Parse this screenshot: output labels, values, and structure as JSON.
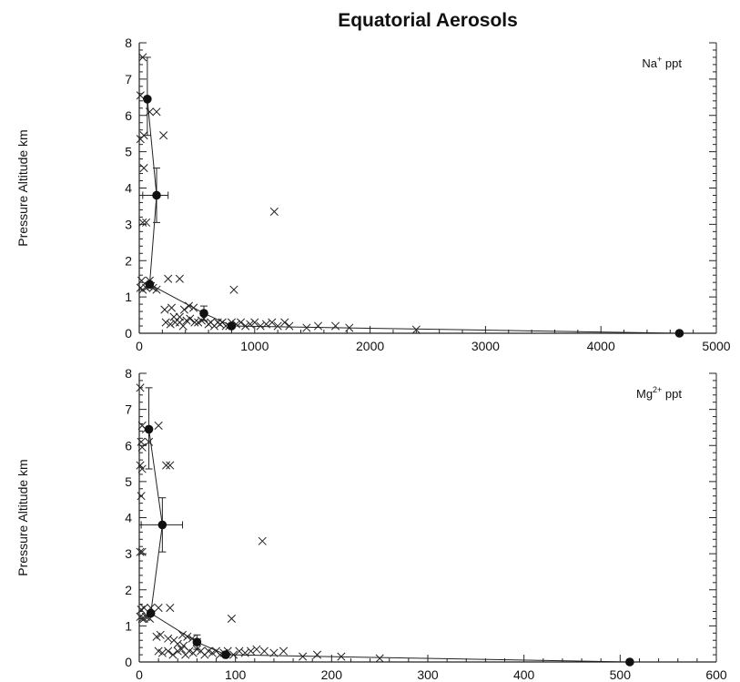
{
  "title": "Equatorial Aerosols",
  "chart_data": [
    {
      "type": "scatter",
      "ylabel": "Pressure Altitude km",
      "species_label": {
        "base": "Na",
        "sup": "+",
        "unit": " ppt"
      },
      "xlim": [
        0,
        5000
      ],
      "ylim": [
        0,
        8
      ],
      "xticks": [
        "0",
        "1000",
        "2000",
        "3000",
        "4000",
        "5000"
      ],
      "yticks": [
        "0",
        "1",
        "2",
        "3",
        "4",
        "5",
        "6",
        "7",
        "8"
      ],
      "samples": [
        [
          30,
          7.6
        ],
        [
          10,
          6.55
        ],
        [
          90,
          6.1
        ],
        [
          150,
          6.1
        ],
        [
          10,
          5.35
        ],
        [
          40,
          5.45
        ],
        [
          210,
          5.45
        ],
        [
          40,
          4.55
        ],
        [
          30,
          3.05
        ],
        [
          60,
          3.05
        ],
        [
          1170,
          3.35
        ],
        [
          20,
          1.45
        ],
        [
          90,
          1.45
        ],
        [
          250,
          1.5
        ],
        [
          350,
          1.5
        ],
        [
          820,
          1.2
        ],
        [
          10,
          1.25
        ],
        [
          30,
          1.2
        ],
        [
          60,
          1.25
        ],
        [
          80,
          1.3
        ],
        [
          100,
          1.3
        ],
        [
          120,
          1.25
        ],
        [
          150,
          1.2
        ],
        [
          220,
          0.65
        ],
        [
          280,
          0.7
        ],
        [
          300,
          0.45
        ],
        [
          350,
          0.45
        ],
        [
          390,
          0.65
        ],
        [
          430,
          0.75
        ],
        [
          470,
          0.7
        ],
        [
          230,
          0.3
        ],
        [
          270,
          0.25
        ],
        [
          310,
          0.3
        ],
        [
          350,
          0.3
        ],
        [
          380,
          0.2
        ],
        [
          410,
          0.35
        ],
        [
          440,
          0.4
        ],
        [
          480,
          0.3
        ],
        [
          510,
          0.3
        ],
        [
          540,
          0.35
        ],
        [
          560,
          0.4
        ],
        [
          600,
          0.25
        ],
        [
          620,
          0.3
        ],
        [
          650,
          0.2
        ],
        [
          680,
          0.3
        ],
        [
          700,
          0.25
        ],
        [
          720,
          0.3
        ],
        [
          750,
          0.2
        ],
        [
          780,
          0.2
        ],
        [
          800,
          0.3
        ],
        [
          840,
          0.25
        ],
        [
          880,
          0.3
        ],
        [
          920,
          0.2
        ],
        [
          960,
          0.25
        ],
        [
          1000,
          0.3
        ],
        [
          1050,
          0.2
        ],
        [
          1100,
          0.25
        ],
        [
          1150,
          0.3
        ],
        [
          1200,
          0.2
        ],
        [
          1260,
          0.3
        ],
        [
          1300,
          0.2
        ],
        [
          1450,
          0.15
        ],
        [
          1550,
          0.2
        ],
        [
          1700,
          0.2
        ],
        [
          1820,
          0.15
        ],
        [
          2400,
          0.1
        ]
      ],
      "profile": [
        [
          70,
          6.45
        ],
        [
          150,
          3.8
        ],
        [
          90,
          1.35
        ],
        [
          560,
          0.55
        ],
        [
          800,
          0.2
        ],
        [
          4680,
          0.0
        ]
      ],
      "error_bars": [
        {
          "x": 70,
          "y": 6.45,
          "ylow": 5.45,
          "yhigh": 7.6,
          "xlow": 70,
          "xhigh": 70
        },
        {
          "x": 150,
          "y": 3.8,
          "ylow": 3.05,
          "yhigh": 4.55,
          "xlow": 30,
          "xhigh": 250
        },
        {
          "x": 560,
          "y": 0.55,
          "ylow": 0.35,
          "yhigh": 0.75,
          "xlow": 560,
          "xhigh": 560
        }
      ]
    },
    {
      "type": "scatter",
      "ylabel": "Pressure Altitude km",
      "species_label": {
        "base": "Mg",
        "sup": "2+",
        "unit": " ppt"
      },
      "xlim": [
        0,
        600
      ],
      "ylim": [
        0,
        8
      ],
      "xticks": [
        "0",
        "100",
        "200",
        "300",
        "400",
        "500",
        "600"
      ],
      "yticks": [
        "0",
        "1",
        "2",
        "3",
        "4",
        "5",
        "6",
        "7",
        "8"
      ],
      "samples": [
        [
          1,
          7.6
        ],
        [
          3,
          6.55
        ],
        [
          7,
          6.45
        ],
        [
          2,
          6.1
        ],
        [
          3,
          5.95
        ],
        [
          10,
          6.1
        ],
        [
          20,
          6.55
        ],
        [
          1,
          5.45
        ],
        [
          3,
          5.35
        ],
        [
          28,
          5.45
        ],
        [
          32,
          5.45
        ],
        [
          2,
          4.6
        ],
        [
          1,
          3.05
        ],
        [
          3,
          3.05
        ],
        [
          128,
          3.35
        ],
        [
          2,
          1.45
        ],
        [
          5,
          1.5
        ],
        [
          12,
          1.5
        ],
        [
          20,
          1.5
        ],
        [
          32,
          1.5
        ],
        [
          96,
          1.2
        ],
        [
          1,
          1.25
        ],
        [
          3,
          1.2
        ],
        [
          5,
          1.2
        ],
        [
          7,
          1.25
        ],
        [
          9,
          1.25
        ],
        [
          11,
          1.2
        ],
        [
          18,
          0.7
        ],
        [
          22,
          0.75
        ],
        [
          30,
          0.65
        ],
        [
          36,
          0.6
        ],
        [
          45,
          0.75
        ],
        [
          50,
          0.7
        ],
        [
          55,
          0.65
        ],
        [
          60,
          0.55
        ],
        [
          40,
          0.5
        ],
        [
          46,
          0.45
        ],
        [
          20,
          0.3
        ],
        [
          24,
          0.25
        ],
        [
          30,
          0.3
        ],
        [
          35,
          0.2
        ],
        [
          40,
          0.3
        ],
        [
          44,
          0.35
        ],
        [
          48,
          0.2
        ],
        [
          52,
          0.3
        ],
        [
          56,
          0.25
        ],
        [
          60,
          0.35
        ],
        [
          64,
          0.3
        ],
        [
          68,
          0.2
        ],
        [
          72,
          0.3
        ],
        [
          76,
          0.25
        ],
        [
          80,
          0.3
        ],
        [
          84,
          0.2
        ],
        [
          88,
          0.25
        ],
        [
          92,
          0.3
        ],
        [
          98,
          0.2
        ],
        [
          104,
          0.3
        ],
        [
          110,
          0.25
        ],
        [
          116,
          0.3
        ],
        [
          122,
          0.35
        ],
        [
          130,
          0.3
        ],
        [
          140,
          0.25
        ],
        [
          150,
          0.3
        ],
        [
          170,
          0.15
        ],
        [
          185,
          0.2
        ],
        [
          210,
          0.15
        ],
        [
          250,
          0.1
        ]
      ],
      "profile": [
        [
          10,
          6.45
        ],
        [
          24,
          3.8
        ],
        [
          12,
          1.35
        ],
        [
          60,
          0.55
        ],
        [
          90,
          0.2
        ],
        [
          510,
          0.0
        ]
      ],
      "error_bars": [
        {
          "x": 10,
          "y": 6.45,
          "ylow": 5.35,
          "yhigh": 7.6,
          "xlow": 10,
          "xhigh": 10
        },
        {
          "x": 24,
          "y": 3.8,
          "ylow": 3.05,
          "yhigh": 4.55,
          "xlow": 2,
          "xhigh": 45
        },
        {
          "x": 60,
          "y": 0.55,
          "ylow": 0.35,
          "yhigh": 0.75,
          "xlow": 60,
          "xhigh": 60
        }
      ]
    }
  ]
}
